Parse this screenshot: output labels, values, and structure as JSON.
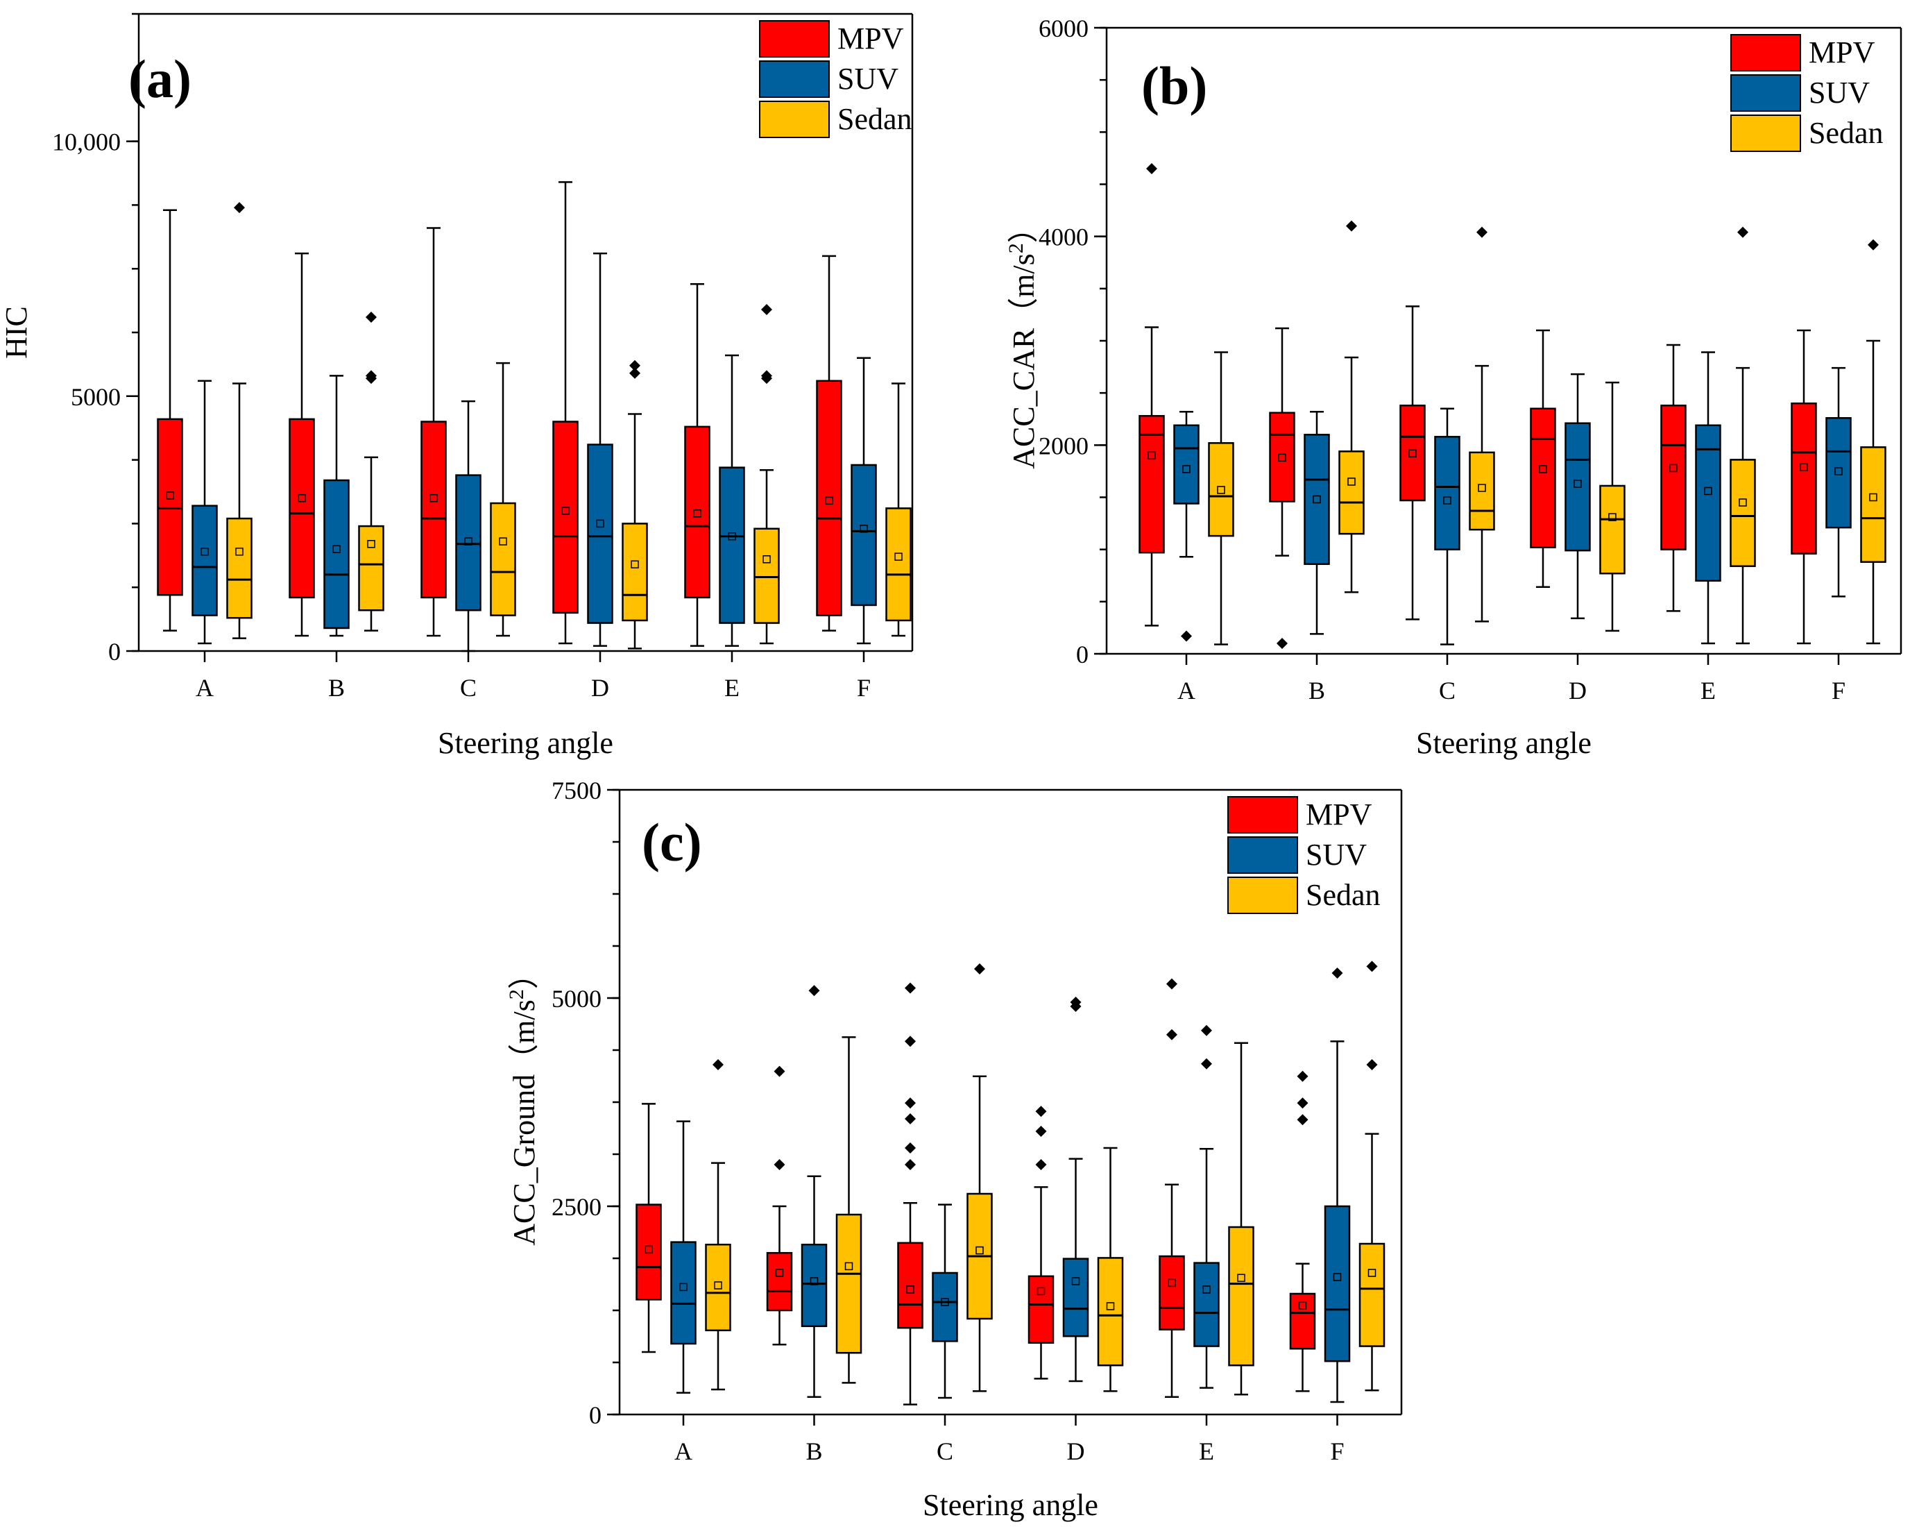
{
  "legend": [
    {
      "label": "MPV",
      "color": "#ff0000"
    },
    {
      "label": "SUV",
      "color": "#00609e"
    },
    {
      "label": "Sedan",
      "color": "#ffc000"
    }
  ],
  "chart_data": [
    {
      "type": "box",
      "panel_label": "(a)",
      "title": "",
      "xlabel": "Steering angle",
      "ylabel": "HIC",
      "ylabel_sup": "",
      "ylabel_end": "",
      "ylim": [
        0,
        12500
      ],
      "yticks": [
        0,
        5000,
        10000
      ],
      "ytick_labels": [
        "0",
        "5000",
        "10,000"
      ],
      "minor_step": 1250,
      "categories": [
        "A",
        "B",
        "C",
        "D",
        "E",
        "F"
      ],
      "series": [
        {
          "name": "MPV",
          "boxes": [
            {
              "q1": 1100,
              "median": 2800,
              "q3": 4550,
              "low": 400,
              "high": 8650,
              "mean": 3050,
              "outliers": []
            },
            {
              "q1": 1050,
              "median": 2700,
              "q3": 4550,
              "low": 300,
              "high": 7800,
              "mean": 3000,
              "outliers": []
            },
            {
              "q1": 1050,
              "median": 2600,
              "q3": 4500,
              "low": 300,
              "high": 8300,
              "mean": 3000,
              "outliers": []
            },
            {
              "q1": 750,
              "median": 2250,
              "q3": 4500,
              "low": 150,
              "high": 9200,
              "mean": 2750,
              "outliers": []
            },
            {
              "q1": 1050,
              "median": 2450,
              "q3": 4400,
              "low": 100,
              "high": 7200,
              "mean": 2700,
              "outliers": []
            },
            {
              "q1": 700,
              "median": 2600,
              "q3": 5300,
              "low": 400,
              "high": 7750,
              "mean": 2950,
              "outliers": []
            }
          ]
        },
        {
          "name": "SUV",
          "boxes": [
            {
              "q1": 700,
              "median": 1650,
              "q3": 2850,
              "low": 150,
              "high": 5300,
              "mean": 1950,
              "outliers": []
            },
            {
              "q1": 450,
              "median": 1500,
              "q3": 3350,
              "low": 300,
              "high": 5400,
              "mean": 2000,
              "outliers": []
            },
            {
              "q1": 800,
              "median": 2100,
              "q3": 3450,
              "low": 0,
              "high": 4900,
              "mean": 2150,
              "outliers": []
            },
            {
              "q1": 550,
              "median": 2250,
              "q3": 4050,
              "low": 100,
              "high": 7800,
              "mean": 2500,
              "outliers": []
            },
            {
              "q1": 550,
              "median": 2250,
              "q3": 3600,
              "low": 100,
              "high": 5800,
              "mean": 2250,
              "outliers": []
            },
            {
              "q1": 900,
              "median": 2350,
              "q3": 3650,
              "low": 150,
              "high": 5750,
              "mean": 2400,
              "outliers": []
            }
          ]
        },
        {
          "name": "Sedan",
          "boxes": [
            {
              "q1": 650,
              "median": 1400,
              "q3": 2600,
              "low": 250,
              "high": 5250,
              "mean": 1950,
              "outliers": [
                8700
              ]
            },
            {
              "q1": 800,
              "median": 1700,
              "q3": 2450,
              "low": 400,
              "high": 3800,
              "mean": 2100,
              "outliers": [
                5350,
                5400,
                6550
              ]
            },
            {
              "q1": 700,
              "median": 1550,
              "q3": 2900,
              "low": 300,
              "high": 5650,
              "mean": 2150,
              "outliers": []
            },
            {
              "q1": 600,
              "median": 1100,
              "q3": 2500,
              "low": 50,
              "high": 4650,
              "mean": 1700,
              "outliers": [
                5450,
                5600
              ]
            },
            {
              "q1": 550,
              "median": 1450,
              "q3": 2400,
              "low": 150,
              "high": 3550,
              "mean": 1800,
              "outliers": [
                5350,
                5400,
                6700
              ]
            },
            {
              "q1": 600,
              "median": 1500,
              "q3": 2800,
              "low": 300,
              "high": 5250,
              "mean": 1850,
              "outliers": []
            }
          ]
        }
      ]
    },
    {
      "type": "box",
      "panel_label": "(b)",
      "title": "",
      "xlabel": "Steering angle",
      "ylabel": "ACC_CAR（m/s",
      "ylabel_sup": "2",
      "ylabel_end": "）",
      "ylim": [
        0,
        6000
      ],
      "yticks": [
        0,
        2000,
        4000,
        6000
      ],
      "ytick_labels": [
        "0",
        "2000",
        "4000",
        "6000"
      ],
      "minor_step": 500,
      "categories": [
        "A",
        "B",
        "C",
        "D",
        "E",
        "F"
      ],
      "series": [
        {
          "name": "MPV",
          "boxes": [
            {
              "q1": 970,
              "median": 2100,
              "q3": 2280,
              "low": 270,
              "high": 3130,
              "mean": 1900,
              "outliers": [
                4650
              ]
            },
            {
              "q1": 1460,
              "median": 2100,
              "q3": 2310,
              "low": 940,
              "high": 3120,
              "mean": 1880,
              "outliers": [
                100
              ]
            },
            {
              "q1": 1470,
              "median": 2080,
              "q3": 2380,
              "low": 330,
              "high": 3330,
              "mean": 1920,
              "outliers": []
            },
            {
              "q1": 1020,
              "median": 2060,
              "q3": 2350,
              "low": 640,
              "high": 3100,
              "mean": 1770,
              "outliers": []
            },
            {
              "q1": 1000,
              "median": 2000,
              "q3": 2380,
              "low": 410,
              "high": 2960,
              "mean": 1780,
              "outliers": []
            },
            {
              "q1": 960,
              "median": 1930,
              "q3": 2400,
              "low": 100,
              "high": 3100,
              "mean": 1790,
              "outliers": []
            }
          ]
        },
        {
          "name": "SUV",
          "boxes": [
            {
              "q1": 1440,
              "median": 1970,
              "q3": 2190,
              "low": 930,
              "high": 2320,
              "mean": 1770,
              "outliers": [
                170
              ]
            },
            {
              "q1": 860,
              "median": 1670,
              "q3": 2100,
              "low": 190,
              "high": 2320,
              "mean": 1480,
              "outliers": []
            },
            {
              "q1": 1000,
              "median": 1600,
              "q3": 2080,
              "low": 90,
              "high": 2350,
              "mean": 1470,
              "outliers": []
            },
            {
              "q1": 990,
              "median": 1860,
              "q3": 2210,
              "low": 340,
              "high": 2680,
              "mean": 1630,
              "outliers": []
            },
            {
              "q1": 700,
              "median": 1960,
              "q3": 2190,
              "low": 100,
              "high": 2890,
              "mean": 1560,
              "outliers": []
            },
            {
              "q1": 1210,
              "median": 1940,
              "q3": 2260,
              "low": 550,
              "high": 2740,
              "mean": 1750,
              "outliers": []
            }
          ]
        },
        {
          "name": "Sedan",
          "boxes": [
            {
              "q1": 1130,
              "median": 1510,
              "q3": 2020,
              "low": 90,
              "high": 2890,
              "mean": 1570,
              "outliers": []
            },
            {
              "q1": 1150,
              "median": 1450,
              "q3": 1940,
              "low": 590,
              "high": 2840,
              "mean": 1650,
              "outliers": [
                4100
              ]
            },
            {
              "q1": 1190,
              "median": 1370,
              "q3": 1930,
              "low": 310,
              "high": 2760,
              "mean": 1590,
              "outliers": [
                4040
              ]
            },
            {
              "q1": 770,
              "median": 1290,
              "q3": 1610,
              "low": 220,
              "high": 2600,
              "mean": 1310,
              "outliers": []
            },
            {
              "q1": 840,
              "median": 1320,
              "q3": 1860,
              "low": 100,
              "high": 2740,
              "mean": 1450,
              "outliers": [
                4040
              ]
            },
            {
              "q1": 880,
              "median": 1300,
              "q3": 1980,
              "low": 100,
              "high": 3000,
              "mean": 1500,
              "outliers": [
                3920
              ]
            }
          ]
        }
      ]
    },
    {
      "type": "box",
      "panel_label": "(c)",
      "title": "",
      "xlabel": "Steering angle",
      "ylabel": "ACC_Ground（m/s",
      "ylabel_sup": "2",
      "ylabel_end": "）",
      "ylim": [
        0,
        7500
      ],
      "yticks": [
        0,
        2500,
        5000,
        7500
      ],
      "ytick_labels": [
        "0",
        "2500",
        "5000",
        "7500"
      ],
      "minor_step": 625,
      "categories": [
        "A",
        "B",
        "C",
        "D",
        "E",
        "F"
      ],
      "series": [
        {
          "name": "MPV",
          "boxes": [
            {
              "q1": 1380,
              "median": 1770,
              "q3": 2520,
              "low": 750,
              "high": 3730,
              "mean": 1980,
              "outliers": []
            },
            {
              "q1": 1250,
              "median": 1480,
              "q3": 1940,
              "low": 840,
              "high": 2500,
              "mean": 1700,
              "outliers": [
                3000,
                4120
              ]
            },
            {
              "q1": 1040,
              "median": 1320,
              "q3": 2060,
              "low": 120,
              "high": 2540,
              "mean": 1500,
              "outliers": [
                3000,
                3200,
                3550,
                3740,
                4480,
                5120
              ]
            },
            {
              "q1": 860,
              "median": 1320,
              "q3": 1660,
              "low": 430,
              "high": 2730,
              "mean": 1480,
              "outliers": [
                3000,
                3400,
                3640
              ]
            },
            {
              "q1": 1020,
              "median": 1280,
              "q3": 1900,
              "low": 210,
              "high": 2760,
              "mean": 1580,
              "outliers": [
                4560,
                5170
              ]
            },
            {
              "q1": 790,
              "median": 1220,
              "q3": 1450,
              "low": 280,
              "high": 1810,
              "mean": 1310,
              "outliers": [
                3540,
                3740,
                4060
              ]
            }
          ]
        },
        {
          "name": "SUV",
          "boxes": [
            {
              "q1": 850,
              "median": 1330,
              "q3": 2070,
              "low": 260,
              "high": 3520,
              "mean": 1530,
              "outliers": []
            },
            {
              "q1": 1060,
              "median": 1570,
              "q3": 2040,
              "low": 210,
              "high": 2860,
              "mean": 1600,
              "outliers": [
                5090
              ]
            },
            {
              "q1": 880,
              "median": 1350,
              "q3": 1700,
              "low": 200,
              "high": 2520,
              "mean": 1350,
              "outliers": []
            },
            {
              "q1": 940,
              "median": 1270,
              "q3": 1870,
              "low": 400,
              "high": 3070,
              "mean": 1600,
              "outliers": [
                4900,
                4950
              ]
            },
            {
              "q1": 820,
              "median": 1220,
              "q3": 1820,
              "low": 320,
              "high": 3190,
              "mean": 1500,
              "outliers": [
                4210,
                4610
              ]
            },
            {
              "q1": 640,
              "median": 1260,
              "q3": 2500,
              "low": 150,
              "high": 4480,
              "mean": 1650,
              "outliers": [
                5300
              ]
            }
          ]
        },
        {
          "name": "Sedan",
          "boxes": [
            {
              "q1": 1010,
              "median": 1460,
              "q3": 2040,
              "low": 300,
              "high": 3020,
              "mean": 1550,
              "outliers": [
                4200
              ]
            },
            {
              "q1": 740,
              "median": 1690,
              "q3": 2400,
              "low": 380,
              "high": 4530,
              "mean": 1780,
              "outliers": []
            },
            {
              "q1": 1150,
              "median": 1900,
              "q3": 2650,
              "low": 280,
              "high": 4060,
              "mean": 1970,
              "outliers": [
                5350
              ]
            },
            {
              "q1": 590,
              "median": 1190,
              "q3": 1880,
              "low": 280,
              "high": 3200,
              "mean": 1300,
              "outliers": []
            },
            {
              "q1": 590,
              "median": 1570,
              "q3": 2250,
              "low": 240,
              "high": 4460,
              "mean": 1640,
              "outliers": []
            },
            {
              "q1": 820,
              "median": 1510,
              "q3": 2050,
              "low": 290,
              "high": 3370,
              "mean": 1700,
              "outliers": [
                4200,
                5380
              ]
            }
          ]
        }
      ]
    }
  ]
}
